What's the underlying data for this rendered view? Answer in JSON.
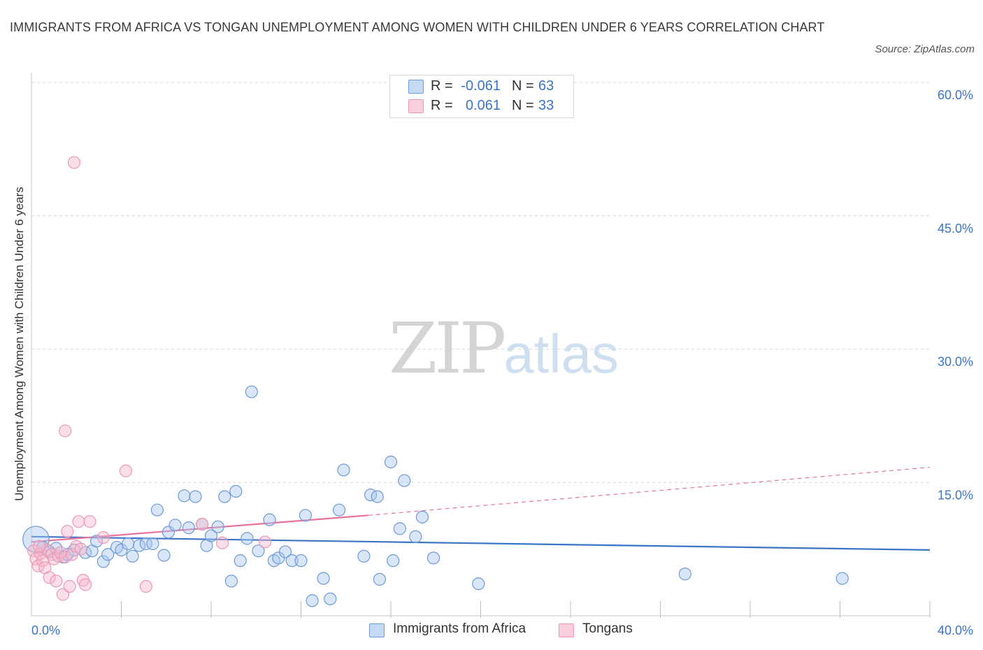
{
  "title": "IMMIGRANTS FROM AFRICA VS TONGAN UNEMPLOYMENT AMONG WOMEN WITH CHILDREN UNDER 6 YEARS CORRELATION CHART",
  "source": "Source: ZipAtlas.com",
  "watermark": {
    "zip": "ZIP",
    "atlas": "atlas"
  },
  "colors": {
    "blue": "#3b74c7",
    "blue_fill": "#a9c8f0",
    "pink": "#e8739b",
    "pink_fill": "#f6b8cc",
    "grid": "#d8d8d8"
  },
  "legend_top": [
    {
      "r_label": "R =",
      "r_value": "-0.061",
      "n_label": "N =",
      "n_value": "63"
    },
    {
      "r_label": "R =",
      "r_value": "0.061",
      "n_label": "N =",
      "n_value": "33"
    }
  ],
  "legend_bottom": [
    "Immigrants from Africa",
    "Tongans"
  ],
  "chart_data": {
    "type": "scatter",
    "title": "IMMIGRANTS FROM AFRICA VS TONGAN UNEMPLOYMENT AMONG WOMEN WITH CHILDREN UNDER 6 YEARS CORRELATION CHART",
    "xlabel": "",
    "ylabel": "Unemployment Among Women with Children Under 6 years",
    "xlim": [
      0,
      40
    ],
    "ylim": [
      0,
      60
    ],
    "x_tick_labels": [
      "0.0%",
      "40.0%"
    ],
    "y_ticks": [
      15,
      30,
      45,
      60
    ],
    "y_tick_labels": [
      "15.0%",
      "30.0%",
      "45.0%",
      "60.0%"
    ],
    "grid": true,
    "legend_position": "top-center",
    "series": [
      {
        "name": "Immigrants from Africa",
        "color": "#3b74c7",
        "r": -0.061,
        "n": 63,
        "trend": {
          "x": [
            0,
            40
          ],
          "y": [
            8.9,
            7.4
          ]
        },
        "points": [
          {
            "x": 0.2,
            "y": 8.6,
            "s": 2.2
          },
          {
            "x": 0.5,
            "y": 7.7
          },
          {
            "x": 0.8,
            "y": 7.2
          },
          {
            "x": 1.1,
            "y": 7.6
          },
          {
            "x": 1.4,
            "y": 6.6
          },
          {
            "x": 1.6,
            "y": 6.9
          },
          {
            "x": 1.9,
            "y": 7.4
          },
          {
            "x": 2.4,
            "y": 7.1
          },
          {
            "x": 2.7,
            "y": 7.3
          },
          {
            "x": 2.9,
            "y": 8.4
          },
          {
            "x": 3.2,
            "y": 6.1
          },
          {
            "x": 3.4,
            "y": 6.9
          },
          {
            "x": 3.8,
            "y": 7.7
          },
          {
            "x": 4.0,
            "y": 7.4
          },
          {
            "x": 4.3,
            "y": 8.1
          },
          {
            "x": 4.5,
            "y": 6.7
          },
          {
            "x": 4.8,
            "y": 7.9
          },
          {
            "x": 5.1,
            "y": 8.1
          },
          {
            "x": 5.4,
            "y": 8.1
          },
          {
            "x": 5.6,
            "y": 11.9
          },
          {
            "x": 5.9,
            "y": 6.8
          },
          {
            "x": 6.1,
            "y": 9.4
          },
          {
            "x": 6.4,
            "y": 10.2
          },
          {
            "x": 6.8,
            "y": 13.5
          },
          {
            "x": 7.0,
            "y": 9.9
          },
          {
            "x": 7.3,
            "y": 13.4
          },
          {
            "x": 7.6,
            "y": 10.3
          },
          {
            "x": 7.8,
            "y": 7.9
          },
          {
            "x": 8.0,
            "y": 9.0
          },
          {
            "x": 8.3,
            "y": 10.0
          },
          {
            "x": 8.6,
            "y": 13.4
          },
          {
            "x": 8.9,
            "y": 3.9
          },
          {
            "x": 9.1,
            "y": 14.0
          },
          {
            "x": 9.3,
            "y": 6.2
          },
          {
            "x": 9.6,
            "y": 8.7
          },
          {
            "x": 9.8,
            "y": 25.2
          },
          {
            "x": 10.1,
            "y": 7.3
          },
          {
            "x": 10.6,
            "y": 10.8
          },
          {
            "x": 10.8,
            "y": 6.2
          },
          {
            "x": 11.0,
            "y": 6.5
          },
          {
            "x": 11.3,
            "y": 7.2
          },
          {
            "x": 11.6,
            "y": 6.2
          },
          {
            "x": 12.0,
            "y": 6.2
          },
          {
            "x": 12.2,
            "y": 11.3
          },
          {
            "x": 12.5,
            "y": 1.7
          },
          {
            "x": 13.0,
            "y": 4.2
          },
          {
            "x": 13.3,
            "y": 1.9
          },
          {
            "x": 13.7,
            "y": 11.9
          },
          {
            "x": 13.9,
            "y": 16.4
          },
          {
            "x": 14.8,
            "y": 6.7
          },
          {
            "x": 15.1,
            "y": 13.6
          },
          {
            "x": 15.4,
            "y": 13.4
          },
          {
            "x": 15.5,
            "y": 4.1
          },
          {
            "x": 16.0,
            "y": 17.3
          },
          {
            "x": 16.1,
            "y": 6.2
          },
          {
            "x": 16.4,
            "y": 9.8
          },
          {
            "x": 16.6,
            "y": 15.2
          },
          {
            "x": 17.1,
            "y": 8.9
          },
          {
            "x": 17.4,
            "y": 11.1
          },
          {
            "x": 17.9,
            "y": 6.5
          },
          {
            "x": 19.9,
            "y": 3.6
          },
          {
            "x": 29.1,
            "y": 4.7
          },
          {
            "x": 36.1,
            "y": 4.2
          }
        ]
      },
      {
        "name": "Tongans",
        "color": "#e8739b",
        "r": 0.061,
        "n": 33,
        "trend": {
          "x": [
            0,
            15.0
          ],
          "y": [
            8.3,
            11.3
          ]
        },
        "trend_extension": {
          "x": [
            15.0,
            40
          ],
          "y": [
            11.3,
            16.7
          ]
        },
        "points": [
          {
            "x": 0.1,
            "y": 7.3
          },
          {
            "x": 0.2,
            "y": 6.4
          },
          {
            "x": 0.3,
            "y": 5.6
          },
          {
            "x": 0.4,
            "y": 7.0
          },
          {
            "x": 0.5,
            "y": 6.2
          },
          {
            "x": 0.6,
            "y": 5.4
          },
          {
            "x": 0.7,
            "y": 7.4
          },
          {
            "x": 0.8,
            "y": 4.3
          },
          {
            "x": 0.9,
            "y": 6.9
          },
          {
            "x": 1.0,
            "y": 6.4
          },
          {
            "x": 1.1,
            "y": 3.9
          },
          {
            "x": 1.2,
            "y": 6.7
          },
          {
            "x": 1.3,
            "y": 7.1
          },
          {
            "x": 1.4,
            "y": 2.4
          },
          {
            "x": 1.5,
            "y": 6.6
          },
          {
            "x": 1.5,
            "y": 20.8
          },
          {
            "x": 1.6,
            "y": 9.5
          },
          {
            "x": 1.7,
            "y": 3.3
          },
          {
            "x": 1.8,
            "y": 6.9
          },
          {
            "x": 1.9,
            "y": 51.0
          },
          {
            "x": 2.0,
            "y": 7.8
          },
          {
            "x": 2.1,
            "y": 10.6
          },
          {
            "x": 2.2,
            "y": 7.5
          },
          {
            "x": 2.3,
            "y": 4.0
          },
          {
            "x": 2.4,
            "y": 3.5
          },
          {
            "x": 2.6,
            "y": 10.6
          },
          {
            "x": 3.2,
            "y": 8.8
          },
          {
            "x": 4.2,
            "y": 16.3
          },
          {
            "x": 5.1,
            "y": 3.3
          },
          {
            "x": 7.6,
            "y": 10.3
          },
          {
            "x": 8.5,
            "y": 8.2
          },
          {
            "x": 10.4,
            "y": 8.3
          },
          {
            "x": 0.35,
            "y": 7.8
          }
        ]
      }
    ]
  }
}
